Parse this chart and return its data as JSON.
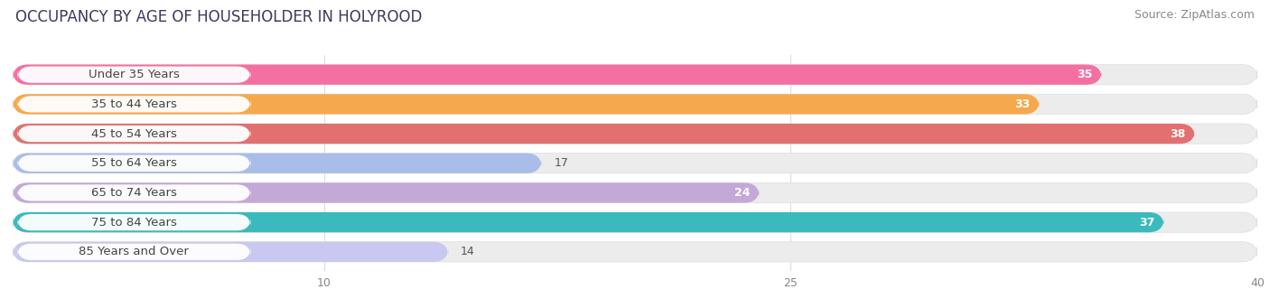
{
  "title": "OCCUPANCY BY AGE OF HOUSEHOLDER IN HOLYROOD",
  "source": "Source: ZipAtlas.com",
  "categories": [
    "Under 35 Years",
    "35 to 44 Years",
    "45 to 54 Years",
    "55 to 64 Years",
    "65 to 74 Years",
    "75 to 84 Years",
    "85 Years and Over"
  ],
  "values": [
    35,
    33,
    38,
    17,
    24,
    37,
    14
  ],
  "bar_colors": [
    "#F470A2",
    "#F6A94C",
    "#E37070",
    "#AABCE8",
    "#C4A8D8",
    "#3ABABC",
    "#C8C8F0"
  ],
  "bar_bg_color": "#ECECEC",
  "label_bg_color": "#FFFFFF",
  "xlim_max": 40,
  "xticks": [
    10,
    25,
    40
  ],
  "title_fontsize": 12,
  "source_fontsize": 9,
  "label_fontsize": 9.5,
  "value_fontsize": 9,
  "bar_height": 0.68,
  "background_color": "#FFFFFF",
  "title_color": "#3A3A5C",
  "label_color": "#444444",
  "value_color_inside": "#FFFFFF",
  "value_color_outside": "#555555",
  "inside_threshold": 20,
  "grid_color": "#DDDDDD",
  "tick_color": "#888888"
}
